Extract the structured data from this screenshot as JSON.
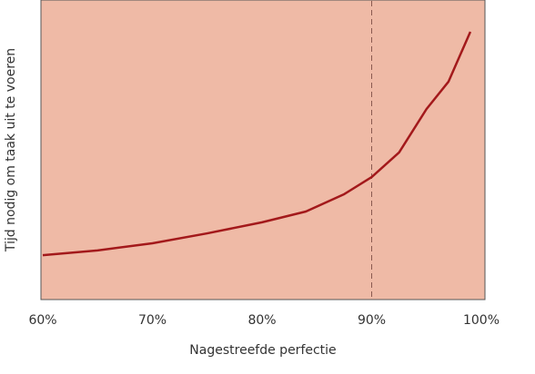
{
  "chart_data": {
    "type": "line",
    "x_label": "Nagestreefde perfectie",
    "y_label": "Tijd nodig om taak uit te voeren",
    "x": [
      60,
      65,
      70,
      75,
      80,
      84,
      87.5,
      90,
      92.5,
      95,
      97,
      99
    ],
    "series": [
      {
        "color": "#a3191b",
        "values": [
          14.8,
          16.4,
          18.8,
          22.1,
          25.8,
          29.4,
          35.2,
          40.9,
          49.1,
          63.6,
          72.7,
          89.4
        ]
      }
    ],
    "xlim": [
      60,
      100
    ],
    "ylim": [
      0,
      100
    ],
    "xticks": [
      {
        "value": 60,
        "label": "60%"
      },
      {
        "value": 70,
        "label": "70%"
      },
      {
        "value": 80,
        "label": "80%"
      },
      {
        "value": 90,
        "label": "90%"
      },
      {
        "value": 100,
        "label": "100%"
      }
    ],
    "reference_x": 90,
    "background": "#efbaa6"
  }
}
